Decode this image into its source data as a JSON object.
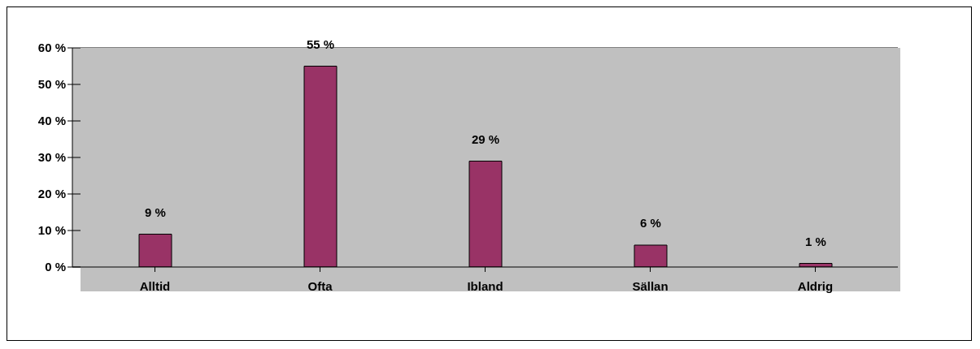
{
  "chart_data": {
    "type": "bar",
    "categories": [
      "Alltid",
      "Ofta",
      "Ibland",
      "Sällan",
      "Aldrig"
    ],
    "values": [
      9,
      55,
      29,
      6,
      1
    ],
    "color": "#993366",
    "value_labels": [
      "9 %",
      "55 %",
      "29 %",
      "6 %",
      "1 %"
    ],
    "ylim": [
      0,
      60
    ],
    "yticks": [
      {
        "value": 0,
        "label": "0 %"
      },
      {
        "value": 10,
        "label": "10 %"
      },
      {
        "value": 20,
        "label": "20 %"
      },
      {
        "value": 30,
        "label": "30 %"
      },
      {
        "value": 40,
        "label": "40 %"
      },
      {
        "value": 50,
        "label": "50 %"
      },
      {
        "value": 60,
        "label": "60 %"
      }
    ],
    "grid": "y"
  }
}
